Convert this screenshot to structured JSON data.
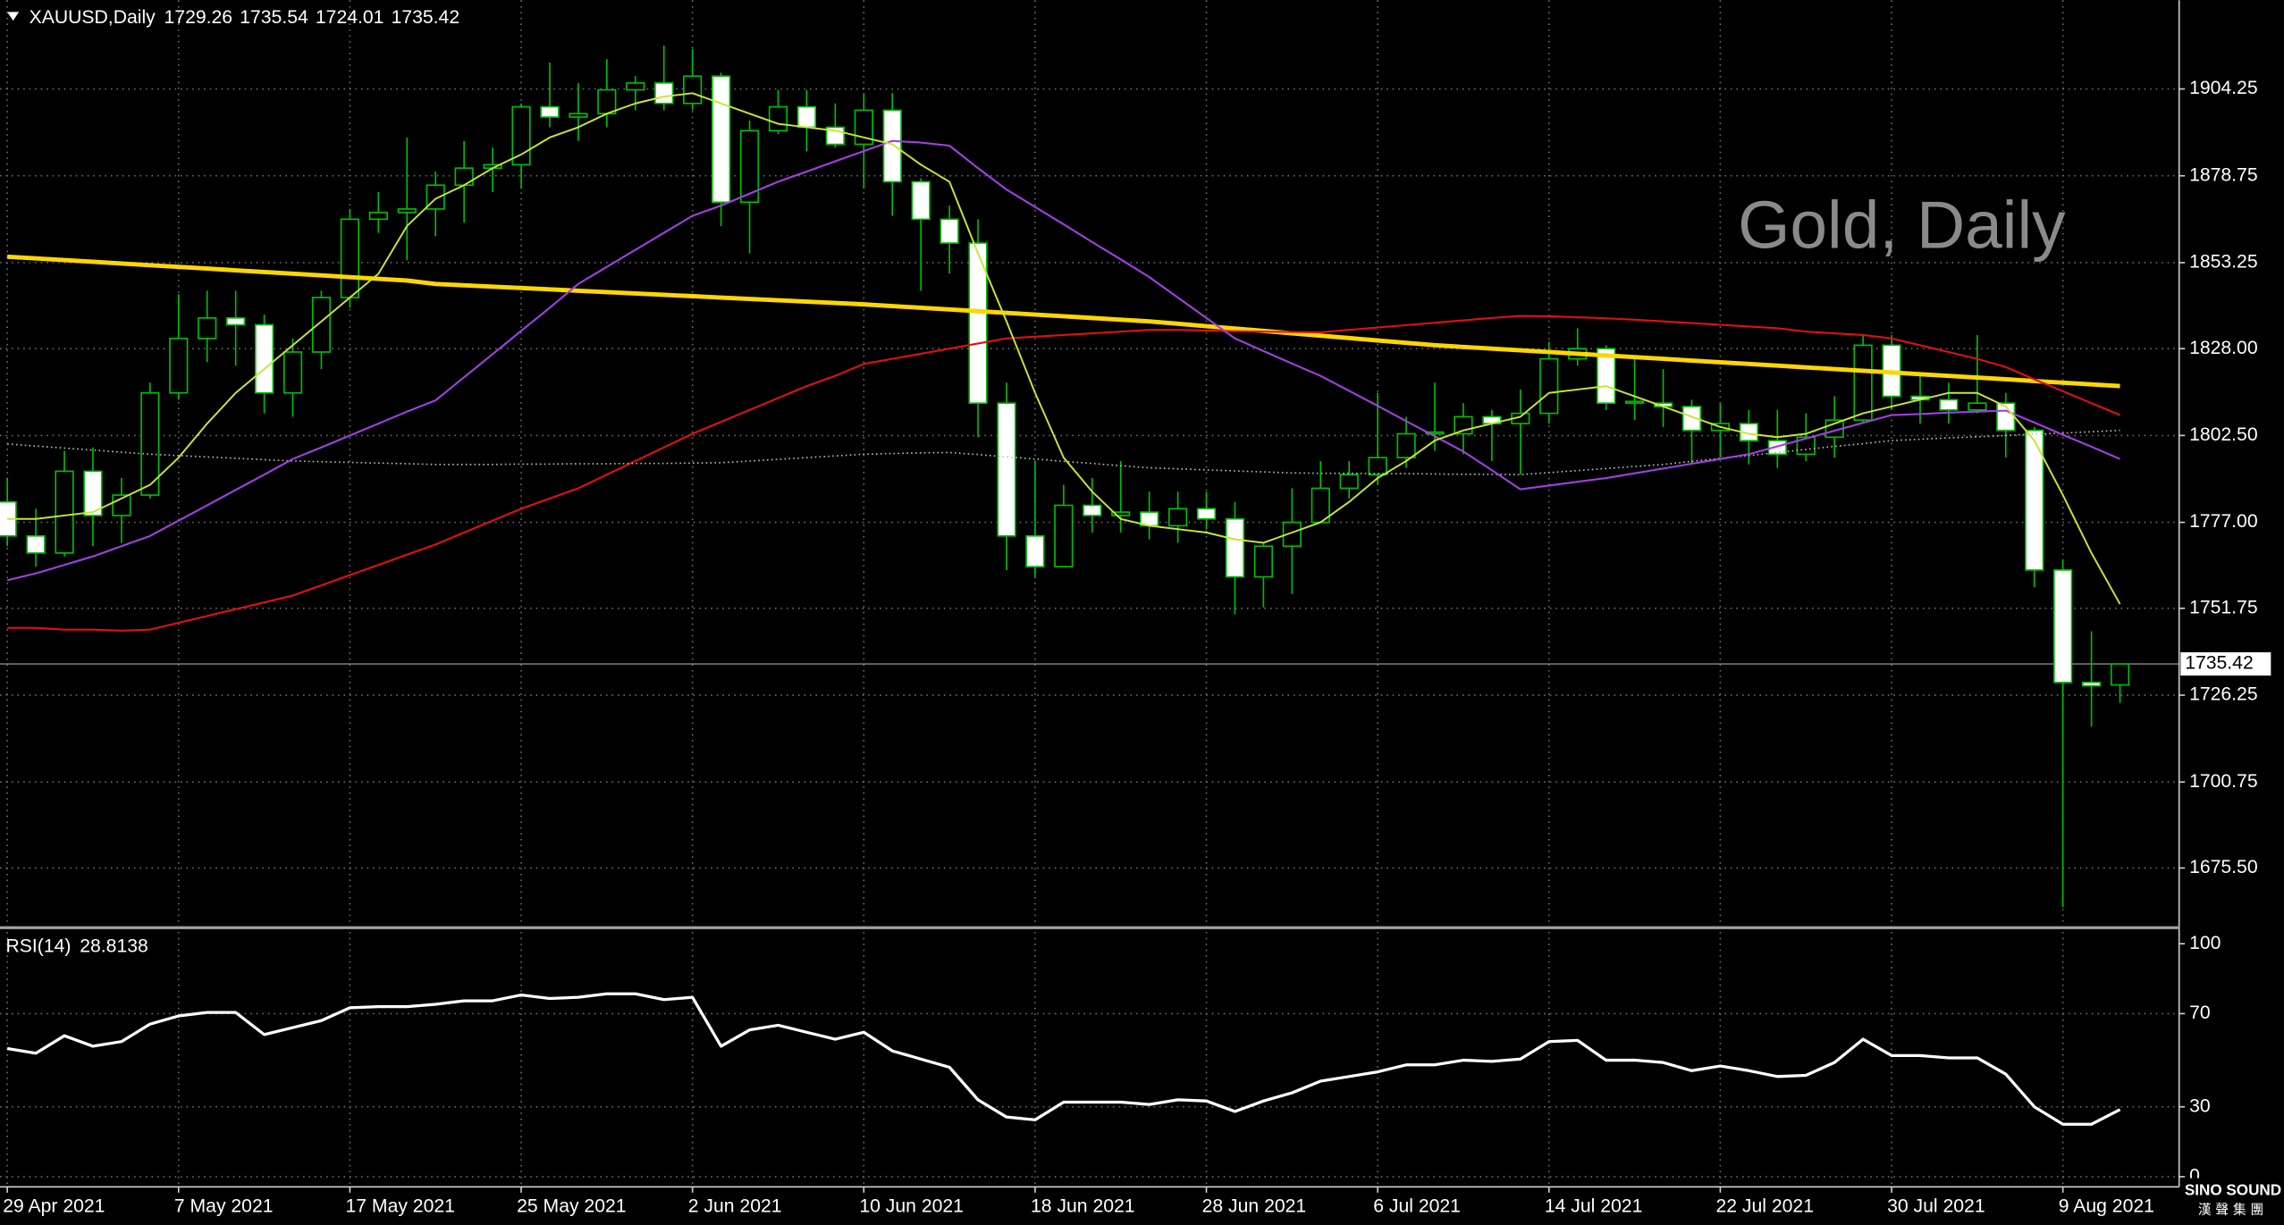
{
  "chart_data": [
    {
      "type": "candlestick",
      "title": "XAUUSD,Daily",
      "annotation": "Gold, Daily",
      "logo": "SINO SOUND",
      "logo_sub": "漢聲集團",
      "categories": [
        "29 Apr 2021",
        null,
        null,
        null,
        null,
        null,
        "7 May 2021",
        null,
        null,
        null,
        null,
        null,
        "17 May 2021",
        null,
        null,
        null,
        null,
        null,
        "25 May 2021",
        null,
        null,
        null,
        null,
        null,
        "2 Jun 2021",
        null,
        null,
        null,
        null,
        null,
        "10 Jun 2021",
        null,
        null,
        null,
        null,
        null,
        "18 Jun 2021",
        null,
        null,
        null,
        null,
        null,
        "28 Jun 2021",
        null,
        null,
        null,
        null,
        null,
        "6 Jul 2021",
        null,
        null,
        null,
        null,
        null,
        "14 Jul 2021",
        null,
        null,
        null,
        null,
        null,
        "22 Jul 2021",
        null,
        null,
        null,
        null,
        null,
        "30 Jul 2021",
        null,
        null,
        null,
        null,
        null,
        "9 Aug 2021",
        null,
        null
      ],
      "ohlc": {
        "open": [
          1783,
          1773,
          1768,
          1792,
          1779,
          1785,
          1815,
          1831,
          1837,
          1835,
          1815,
          1827,
          1843,
          1866,
          1868,
          1869,
          1876,
          1881,
          1882,
          1899,
          1896,
          1897,
          1904,
          1906,
          1900,
          1908,
          1871,
          1892,
          1899,
          1893,
          1888,
          1898,
          1877,
          1866,
          1859,
          1812,
          1773,
          1764,
          1782,
          1779,
          1780,
          1776,
          1781,
          1778,
          1761,
          1770,
          1777,
          1787,
          1791,
          1796,
          1803,
          1803,
          1808,
          1806,
          1809,
          1825,
          1828,
          1812,
          1812,
          1811,
          1804,
          1806,
          1801,
          1797,
          1802,
          1807,
          1829,
          1814,
          1813,
          1810,
          1812,
          1804,
          1763,
          1730,
          1729.26
        ],
        "high": [
          1790,
          1781,
          1798,
          1799,
          1790,
          1818,
          1844,
          1845,
          1845,
          1838,
          1831,
          1845,
          1869,
          1874,
          1890,
          1880,
          1889,
          1887,
          1900,
          1912,
          1906,
          1913,
          1908,
          1917,
          1916,
          1909,
          1895,
          1904,
          1904,
          1900,
          1903,
          1903,
          1878,
          1870,
          1866,
          1818,
          1795,
          1788,
          1790,
          1795,
          1786,
          1786,
          1786,
          1783,
          1771,
          1787,
          1795,
          1795,
          1815,
          1808,
          1818,
          1812,
          1810,
          1816,
          1830,
          1834,
          1829,
          1825,
          1822,
          1813,
          1812,
          1810,
          1810,
          1809,
          1814,
          1832,
          1832,
          1820,
          1818,
          1832,
          1815,
          1805,
          1766,
          1745,
          1735.54
        ],
        "low": [
          1770,
          1764,
          1767,
          1770,
          1771,
          1784,
          1813,
          1824,
          1823,
          1809,
          1808,
          1822,
          1840,
          1862,
          1854,
          1861,
          1865,
          1874,
          1875,
          1893,
          1889,
          1893,
          1898,
          1898,
          1898,
          1864,
          1856,
          1891,
          1886,
          1887,
          1875,
          1867,
          1845,
          1850,
          1802,
          1763,
          1761,
          1764,
          1774,
          1774,
          1772,
          1771,
          1775,
          1750,
          1752,
          1756,
          1777,
          1784,
          1788,
          1793,
          1798,
          1797,
          1795,
          1791,
          1806,
          1823,
          1810,
          1807,
          1805,
          1794,
          1796,
          1794,
          1793,
          1795,
          1796,
          1806,
          1810,
          1806,
          1806,
          1809,
          1796,
          1758,
          1664,
          1717,
          1724.01
        ],
        "close": [
          1773,
          1768,
          1792,
          1779,
          1785,
          1815,
          1831,
          1837,
          1835,
          1815,
          1827,
          1843,
          1866,
          1868,
          1869,
          1876,
          1881,
          1882,
          1899,
          1896,
          1897,
          1904,
          1906,
          1900,
          1908,
          1871,
          1892,
          1899,
          1893,
          1888,
          1898,
          1877,
          1866,
          1859,
          1812,
          1773,
          1764,
          1782,
          1779,
          1780,
          1776,
          1781,
          1778,
          1761,
          1770,
          1777,
          1787,
          1791,
          1796,
          1803,
          1803.5,
          1808,
          1806,
          1809,
          1825,
          1828,
          1812,
          1812.5,
          1811,
          1804,
          1806,
          1801,
          1797,
          1802,
          1807,
          1829,
          1814,
          1813,
          1810,
          1812,
          1804,
          1763,
          1730,
          1729,
          1735.42
        ]
      },
      "bull_color": "#000000",
      "bear_color": "#ffffff",
      "wick_color": "#00c000",
      "moving_averages": [
        {
          "color": "#ffd700",
          "width": 3,
          "style": "solid",
          "values": [
            1855,
            1854.5,
            1854,
            1853.5,
            1853,
            1852.5,
            1852,
            1851.5,
            1851,
            1850.5,
            1850,
            1849.5,
            1849,
            1848.5,
            1848,
            1847,
            1846.6,
            1846.2,
            1845.8,
            1845.4,
            1845,
            1844.6,
            1844.2,
            1843.8,
            1843.4,
            1843,
            1842.6,
            1842.2,
            1841.8,
            1841.4,
            1841,
            1840.5,
            1840,
            1839.5,
            1839,
            1838.5,
            1838,
            1837.5,
            1837,
            1836.5,
            1836,
            1835.3,
            1834.6,
            1833.9,
            1833.2,
            1832.5,
            1831.8,
            1831.1,
            1830.4,
            1829.7,
            1829,
            1828.5,
            1828,
            1827.5,
            1827,
            1826.5,
            1826,
            1825.5,
            1825,
            1824.5,
            1824,
            1823.5,
            1823,
            1822.5,
            1822,
            1821.5,
            1821,
            1820.5,
            1820,
            1819.5,
            1819,
            1818.5,
            1818,
            1817.5,
            1817
          ]
        },
        {
          "color": "#e01010",
          "width": 1.3,
          "style": "solid",
          "values": [
            1746,
            1746,
            1745.5,
            1745.5,
            1745.2,
            1745.5,
            1747.5,
            1749.5,
            1751.5,
            1753.5,
            1755.5,
            1758.5,
            1761.5,
            1764.5,
            1767.5,
            1770.5,
            1774,
            1777.5,
            1781,
            1784,
            1787,
            1791,
            1795,
            1799,
            1803,
            1806.5,
            1810,
            1813.5,
            1817,
            1820,
            1823.5,
            1825,
            1826.5,
            1828,
            1829.5,
            1831,
            1831.5,
            1832,
            1832.5,
            1833,
            1833.5,
            1833.5,
            1833.3,
            1833.1,
            1833,
            1832.9,
            1832.8,
            1833.5,
            1834.2,
            1834.9,
            1835.6,
            1836.3,
            1837,
            1837.6,
            1837.5,
            1837.2,
            1836.9,
            1836.5,
            1836,
            1835.5,
            1835,
            1834.5,
            1834,
            1833,
            1832.5,
            1832,
            1831,
            1829,
            1827,
            1825,
            1822.6,
            1819,
            1815.5,
            1812,
            1808.5
          ]
        },
        {
          "color": "#bbbbbb",
          "width": 1,
          "style": "dotted",
          "values": [
            1800,
            1799.4,
            1798.8,
            1798.2,
            1797.6,
            1797,
            1796.6,
            1796.2,
            1795.8,
            1795.4,
            1795,
            1794.8,
            1794.6,
            1794.4,
            1794.2,
            1794,
            1794,
            1794,
            1794.1,
            1794.1,
            1794.2,
            1794.2,
            1794.3,
            1794.3,
            1794.4,
            1794.5,
            1795,
            1795.5,
            1796,
            1796.5,
            1797,
            1797.2,
            1797.4,
            1797.5,
            1796.9,
            1796.2,
            1795.6,
            1794.9,
            1794.3,
            1793.6,
            1793,
            1792.7,
            1792.4,
            1792.1,
            1791.8,
            1791.5,
            1791.4,
            1791.4,
            1791.3,
            1791.3,
            1791.2,
            1791.1,
            1791.1,
            1791,
            1791.6,
            1792.2,
            1792.8,
            1793.4,
            1794,
            1794.9,
            1795.8,
            1796.6,
            1797.5,
            1798.4,
            1799.3,
            1800.1,
            1801,
            1801.4,
            1801.8,
            1802.1,
            1802.5,
            1802.9,
            1803.2,
            1803.6,
            1804
          ]
        },
        {
          "color": "#a040e0",
          "width": 1.3,
          "style": "solid",
          "values": [
            1760,
            1762,
            1764.5,
            1767,
            1770,
            1773,
            1777.5,
            1782,
            1786.5,
            1791,
            1795.6,
            1799,
            1802.5,
            1806,
            1809.5,
            1812.8,
            1819.6,
            1826.4,
            1833.2,
            1840,
            1847,
            1852,
            1857,
            1862,
            1867,
            1870,
            1873.5,
            1877,
            1880,
            1883,
            1886,
            1889,
            1888.5,
            1887.6,
            1881,
            1874.7,
            1869.6,
            1864.5,
            1859.3,
            1854.2,
            1849,
            1843,
            1837,
            1831,
            1827.3,
            1823.6,
            1820,
            1815.6,
            1811.2,
            1806.7,
            1802.3,
            1797.8,
            1792.3,
            1786.7,
            1787.8,
            1788.9,
            1790,
            1791.4,
            1792.8,
            1794.2,
            1795.6,
            1797,
            1799.3,
            1801.6,
            1803.9,
            1806.2,
            1808.5,
            1808.8,
            1809.2,
            1809.5,
            1809.8,
            1806.3,
            1802.7,
            1799.2,
            1795.6
          ]
        },
        {
          "color": "#c8e632",
          "width": 1.2,
          "style": "solid",
          "values": [
            1778,
            1778,
            1779,
            1780,
            1784,
            1788,
            1796,
            1806,
            1815,
            1822,
            1829,
            1836,
            1843,
            1850,
            1864,
            1872,
            1876,
            1881,
            1885,
            1890,
            1893,
            1897,
            1900,
            1902,
            1903,
            1900,
            1897,
            1894,
            1893,
            1892,
            1890,
            1888,
            1882,
            1877,
            1856,
            1836,
            1815,
            1796,
            1786,
            1778,
            1776,
            1775,
            1774,
            1772,
            1771,
            1774,
            1777,
            1783,
            1790,
            1795,
            1801,
            1804,
            1806,
            1808,
            1815,
            1816,
            1817,
            1814,
            1811,
            1808,
            1805,
            1803,
            1802,
            1803,
            1806,
            1809,
            1811,
            1813,
            1815,
            1815,
            1811,
            1801,
            1785,
            1768,
            1753
          ]
        }
      ],
      "ylim": [
        1658.4,
        1929
      ],
      "yticks": [
        1904.25,
        1878.75,
        1853.25,
        {
          "value": 1828,
          "label": "1828.00"
        },
        {
          "value": 1802.5,
          "label": "1802.50"
        },
        {
          "value": 1777,
          "label": "1777.00"
        },
        1751.75,
        1726.25,
        1700.75,
        {
          "value": 1675.5,
          "label": "1675.50"
        }
      ],
      "grid": true,
      "price_line": true
    },
    {
      "type": "line",
      "title": "RSI(14)",
      "color": "#ffffff",
      "values": [
        55,
        53,
        60.5,
        56,
        58,
        65.5,
        69,
        70.5,
        70.5,
        61,
        64,
        67,
        72.5,
        73,
        73,
        74,
        75.5,
        75.5,
        78,
        76.5,
        77,
        78.5,
        78.5,
        76,
        77,
        56,
        63,
        65,
        62,
        59,
        62,
        54,
        50.5,
        47,
        33,
        25.6,
        24.4,
        32,
        32,
        32,
        31,
        33,
        32.5,
        28,
        32.5,
        36,
        41,
        43,
        45,
        48,
        48,
        50,
        49.5,
        50.5,
        58,
        58.5,
        50,
        50,
        49,
        45.5,
        47.5,
        45.5,
        43,
        43.5,
        49,
        59,
        52,
        52,
        51,
        51,
        44,
        30,
        22.5,
        22.5,
        28.8138
      ],
      "ylim": [
        -4.375,
        106.25
      ],
      "yticks": [
        0,
        30,
        70,
        100
      ],
      "grid": true
    }
  ]
}
